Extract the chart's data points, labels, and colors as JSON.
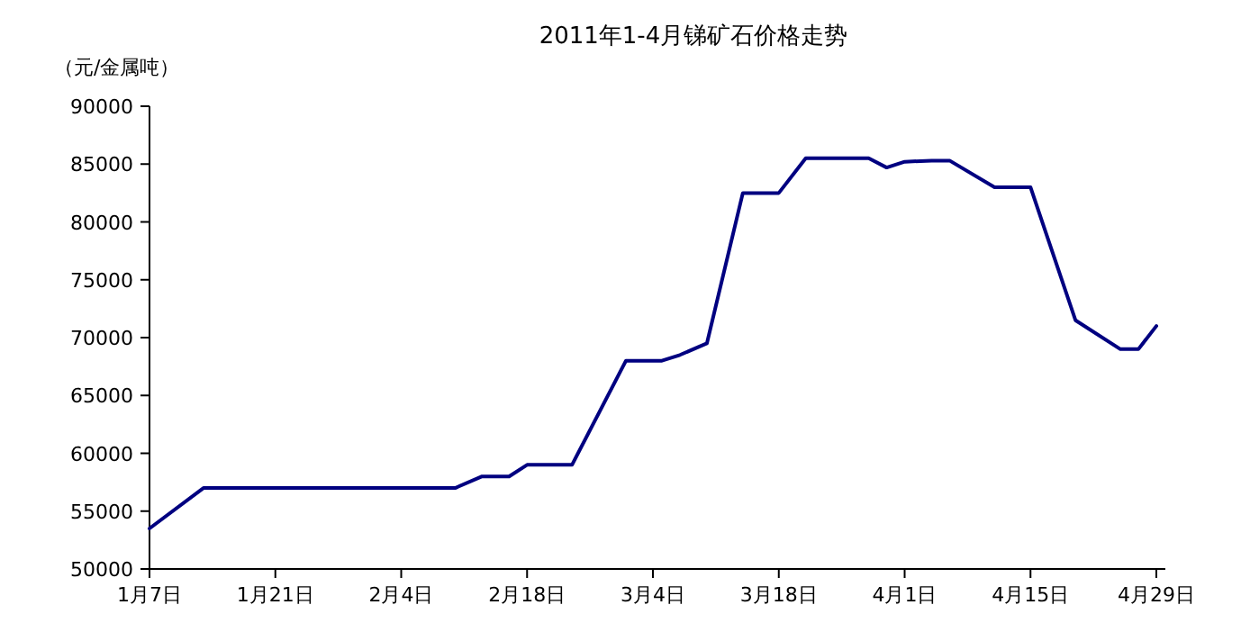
{
  "chart_data": {
    "type": "line",
    "title": "2011年1-4月锑矿石价格走势",
    "ylabel": "（元/金属吨）",
    "x": [
      "2011-01-07",
      "2011-01-13",
      "2011-02-10",
      "2011-02-13",
      "2011-02-16",
      "2011-02-18",
      "2011-02-23",
      "2011-03-01",
      "2011-03-05",
      "2011-03-07",
      "2011-03-10",
      "2011-03-14",
      "2011-03-18",
      "2011-03-21",
      "2011-03-28",
      "2011-03-30",
      "2011-04-01",
      "2011-04-04",
      "2011-04-06",
      "2011-04-11",
      "2011-04-15",
      "2011-04-20",
      "2011-04-25",
      "2011-04-27",
      "2011-04-29"
    ],
    "series": [
      {
        "color": "#000080",
        "values": [
          53500,
          57000,
          57000,
          58000,
          58000,
          59000,
          59000,
          68000,
          68000,
          68500,
          69500,
          82500,
          82500,
          85500,
          85500,
          84700,
          85200,
          85300,
          85300,
          83000,
          83000,
          71500,
          69000,
          69000,
          71000
        ]
      }
    ],
    "xlim": [
      "2011-01-07",
      "2011-04-30"
    ],
    "xticks": [
      {
        "value": "2011-01-07",
        "label": "1月7日"
      },
      {
        "value": "2011-01-21",
        "label": "1月21日"
      },
      {
        "value": "2011-02-04",
        "label": "2月4日"
      },
      {
        "value": "2011-02-18",
        "label": "2月18日"
      },
      {
        "value": "2011-03-04",
        "label": "3月4日"
      },
      {
        "value": "2011-03-18",
        "label": "3月18日"
      },
      {
        "value": "2011-04-01",
        "label": "4月1日"
      },
      {
        "value": "2011-04-15",
        "label": "4月15日"
      },
      {
        "value": "2011-04-29",
        "label": "4月29日"
      }
    ],
    "ylim": [
      50000,
      90000
    ],
    "yticks": [
      50000,
      55000,
      60000,
      65000,
      70000,
      75000,
      80000,
      85000,
      90000
    ],
    "grid": false,
    "marker": "none",
    "line_style": "solid"
  }
}
